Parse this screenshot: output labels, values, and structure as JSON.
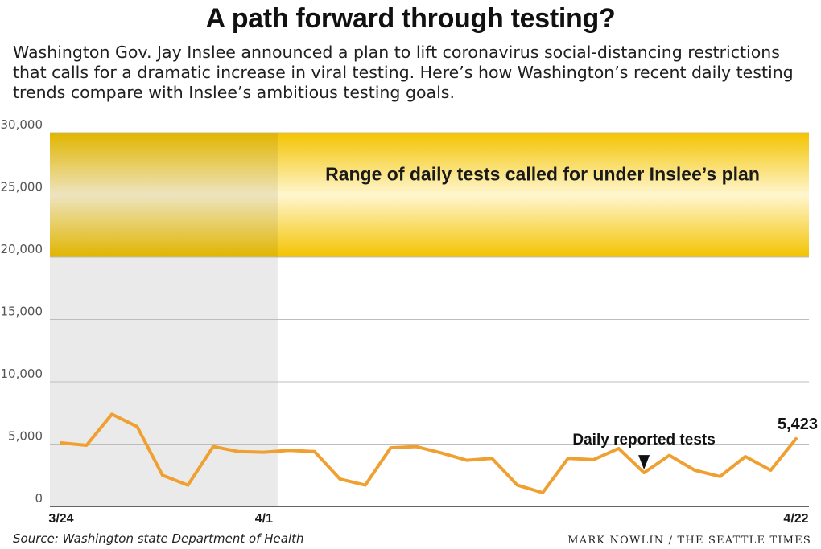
{
  "header": {
    "title": "A path forward through testing?",
    "subtitle": "Washington Gov. Jay Inslee announced a plan to lift coronavirus social-distancing restrictions that calls for a dramatic increase in viral testing. Here’s how Washington’s recent daily testing trends compare with Inslee’s ambitious testing goals."
  },
  "footer": {
    "source": "Source: Washington state Department of Health",
    "credit": "MARK NOWLIN / THE SEATTLE TIMES"
  },
  "colors": {
    "line": "#f0a030",
    "band_edge": "#f3c300",
    "band_center": "#fff3c2",
    "shade": "#eaeaea",
    "grid": "#bdbdbd"
  },
  "chart_data": {
    "type": "line",
    "x": [
      "3/24",
      "3/25",
      "3/26",
      "3/27",
      "3/28",
      "3/29",
      "3/30",
      "3/31",
      "4/1",
      "4/2",
      "4/3",
      "4/4",
      "4/5",
      "4/6",
      "4/7",
      "4/8",
      "4/9",
      "4/10",
      "4/11",
      "4/12",
      "4/13",
      "4/14",
      "4/15",
      "4/16",
      "4/17",
      "4/18",
      "4/19",
      "4/20",
      "4/21",
      "4/22"
    ],
    "series": [
      {
        "name": "Daily reported tests",
        "values": [
          5100,
          4900,
          7400,
          6400,
          2500,
          1700,
          4800,
          4400,
          4350,
          4500,
          4400,
          2200,
          1700,
          4700,
          4800,
          4300,
          3700,
          3850,
          1700,
          1100,
          3850,
          3750,
          4650,
          2700,
          4100,
          2900,
          2400,
          4000,
          2900,
          5423
        ]
      }
    ],
    "band": {
      "from": 20000,
      "to": 30000,
      "label": "Range of daily tests called for under Inslee’s plan"
    },
    "shaded_range": {
      "from": "3/24",
      "to": "4/1"
    },
    "xticks": [
      "3/24",
      "4/1",
      "4/22"
    ],
    "yticks": [
      0,
      5000,
      10000,
      15000,
      20000,
      25000,
      30000
    ],
    "ytick_labels": [
      "0",
      "5,000",
      "10,000",
      "15,000",
      "20,000",
      "25,000",
      "30,000"
    ],
    "ylim": [
      0,
      30000
    ],
    "annotations": [
      {
        "text": "Daily reported tests",
        "at": "4/16"
      },
      {
        "text": "5,423",
        "at": "4/22"
      }
    ],
    "grid": true
  }
}
